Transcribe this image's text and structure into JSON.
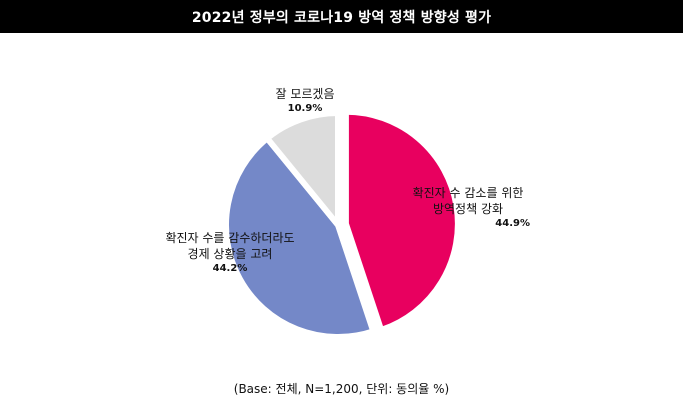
{
  "title": "2022년 정부의 코로나19 방역 정책 방향성 평가",
  "chart_data": {
    "type": "pie",
    "slices": [
      {
        "label": "확진자 수 감소를 위한\n방역정책 강화",
        "value": 44.9,
        "value_label": "44.9%",
        "color": "#e8005f"
      },
      {
        "label": "확진자 수를 감수하더라도\n경제 상황을 고려",
        "value": 44.2,
        "value_label": "44.2%",
        "color": "#7488c8"
      },
      {
        "label": "잘 모르겠음",
        "value": 10.9,
        "value_label": "10.9%",
        "color": "#dcdcdc"
      }
    ],
    "start_angle_deg": 0,
    "direction": "clockwise",
    "exploded": [
      "확진자 수 감소를 위한\n방역정책 강화"
    ]
  },
  "labels": {
    "slice0_line1": "확진자 수 감소를 위한",
    "slice0_line2": "방역정책 강화",
    "slice0_pct": "44.9%",
    "slice1_line1": "확진자 수를 감수하더라도",
    "slice1_line2": "경제 상황을 고려",
    "slice1_pct": "44.2%",
    "slice2_line1": "잘 모르겠음",
    "slice2_pct": "10.9%"
  },
  "footnote": "(Base: 전체, N=1,200, 단위: 동의율 %)"
}
